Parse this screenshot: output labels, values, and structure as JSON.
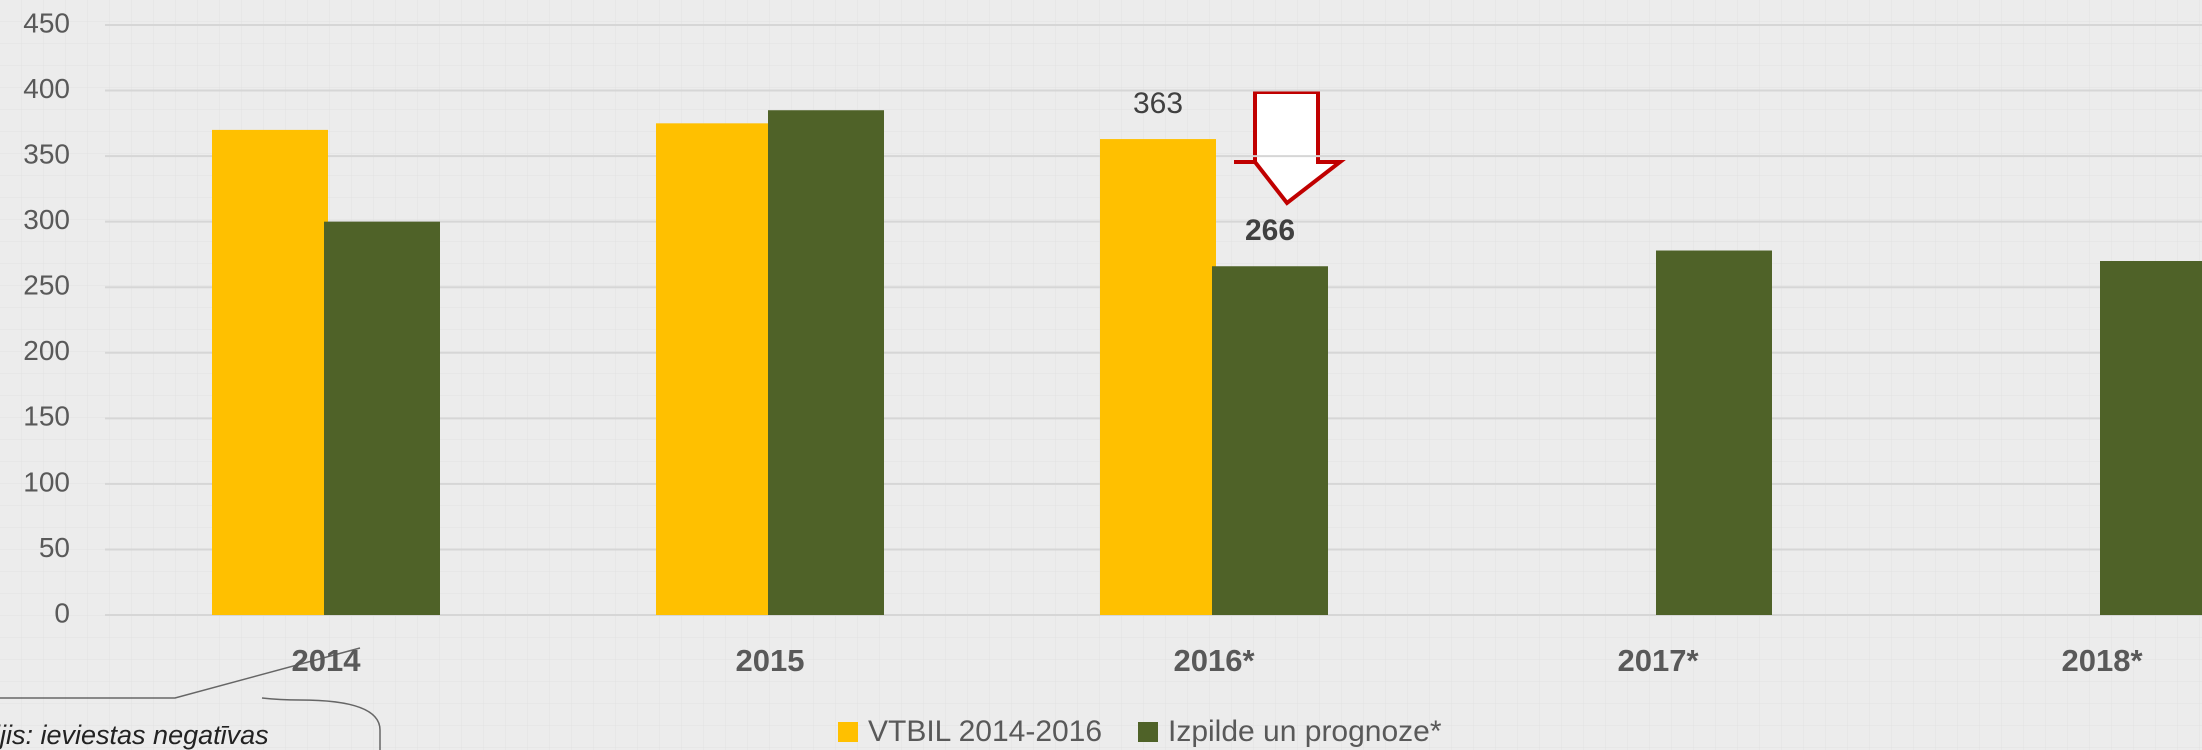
{
  "chart_data": {
    "type": "bar",
    "categories": [
      "2014",
      "2015",
      "2016*",
      "2017*",
      "2018*"
    ],
    "series": [
      {
        "name": "VTBIL 2014-2016",
        "color": "#FFC000",
        "values": [
          370,
          375,
          363,
          null,
          null
        ],
        "value_labels": [
          null,
          null,
          "363",
          null,
          null
        ]
      },
      {
        "name": "Izpilde un prognoze*",
        "color": "#4F6228",
        "values": [
          300,
          385,
          266,
          278,
          270
        ],
        "value_labels": [
          null,
          null,
          "266",
          null,
          null
        ]
      }
    ],
    "ylim": [
      0,
      450
    ],
    "yticks": [
      0,
      50,
      100,
      150,
      200,
      250,
      300,
      350,
      400,
      450
    ],
    "grid": true,
    "annotation": "ijis: ieviestas negatīvas"
  }
}
